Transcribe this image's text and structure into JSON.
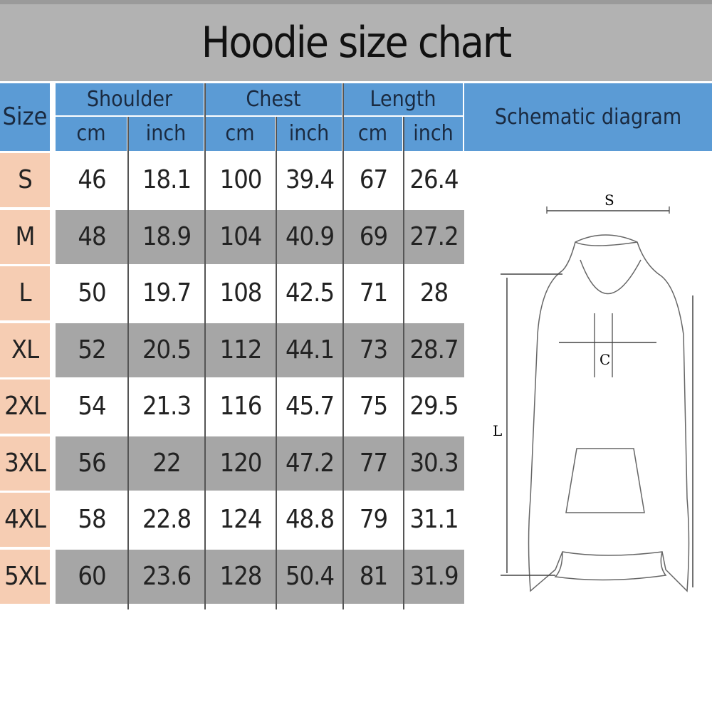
{
  "title": "Hoodie size chart",
  "headers": {
    "size": "Size",
    "groups": [
      "Shoulder",
      "Chest",
      "Length"
    ],
    "units": [
      "cm",
      "inch",
      "cm",
      "inch",
      "cm",
      "inch"
    ],
    "diagram": "Schematic diagram"
  },
  "rows": [
    [
      "S",
      "46",
      "18.1",
      "100",
      "39.4",
      "67",
      "26.4"
    ],
    [
      "M",
      "48",
      "18.9",
      "104",
      "40.9",
      "69",
      "27.2"
    ],
    [
      "L",
      "50",
      "19.7",
      "108",
      "42.5",
      "71",
      "28"
    ],
    [
      "XL",
      "52",
      "20.5",
      "112",
      "44.1",
      "73",
      "28.7"
    ],
    [
      "2XL",
      "54",
      "21.3",
      "116",
      "45.7",
      "75",
      "29.5"
    ],
    [
      "3XL",
      "56",
      "22",
      "120",
      "47.2",
      "77",
      "30.3"
    ],
    [
      "4XL",
      "58",
      "22.8",
      "124",
      "48.8",
      "79",
      "31.1"
    ],
    [
      "5XL",
      "60",
      "23.6",
      "128",
      "50.4",
      "81",
      "31.9"
    ]
  ],
  "diagram_labels": {
    "s": "S",
    "c": "C",
    "l": "L"
  },
  "colors": {
    "header": "#5b9bd5",
    "size_col": "#f6cdb3",
    "stripe": "#a6a6a6",
    "title_bar": "#b2b2b2"
  }
}
